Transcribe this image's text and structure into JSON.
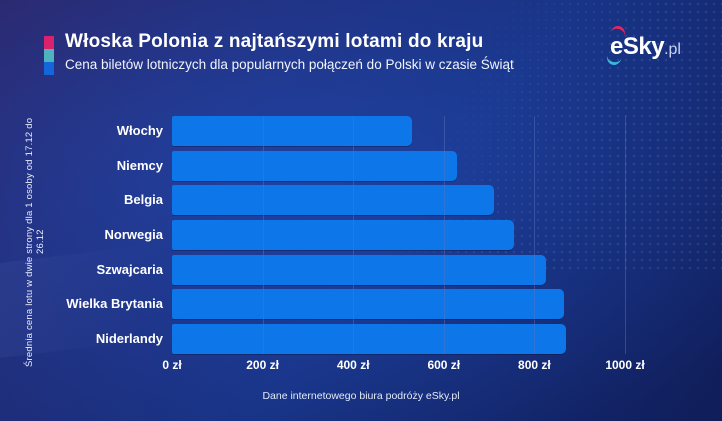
{
  "header": {
    "title": "Włoska Polonia z najtańszymi lotami do kraju",
    "subtitle": "Cena biletów lotniczych dla popularnych połączeń do Polski w czasie Świąt",
    "accent_colors": [
      "#d9216e",
      "#4fb3be",
      "#1467db"
    ]
  },
  "logo": {
    "text": "eSky",
    "suffix": ".pl"
  },
  "chart_data": {
    "type": "bar",
    "orientation": "horizontal",
    "title": "Włoska Polonia z najtańszymi lotami do kraju",
    "subtitle": "Cena biletów lotniczych dla popularnych połączeń do Polski w czasie Świąt",
    "ylabel": "Średnia cena lotu w dwie strony dla 1 osoby od 17.12 do 26.12",
    "categories": [
      "Włochy",
      "Niemcy",
      "Belgia",
      "Norwegia",
      "Szwajcaria",
      "Wielka Brytania",
      "Niderlandy"
    ],
    "values": [
      530,
      630,
      710,
      755,
      825,
      865,
      870
    ],
    "unit": "zł",
    "xlim": [
      0,
      1000
    ],
    "x_tick_labels": [
      "0 zł",
      "200 zł",
      "400 zł",
      "600 zł",
      "800 zł",
      "1000 zł"
    ],
    "grid": true,
    "legend": false,
    "bar_color": "#0d76e8"
  },
  "footer": {
    "source": "Dane internetowego biura podróży eSky.pl"
  }
}
